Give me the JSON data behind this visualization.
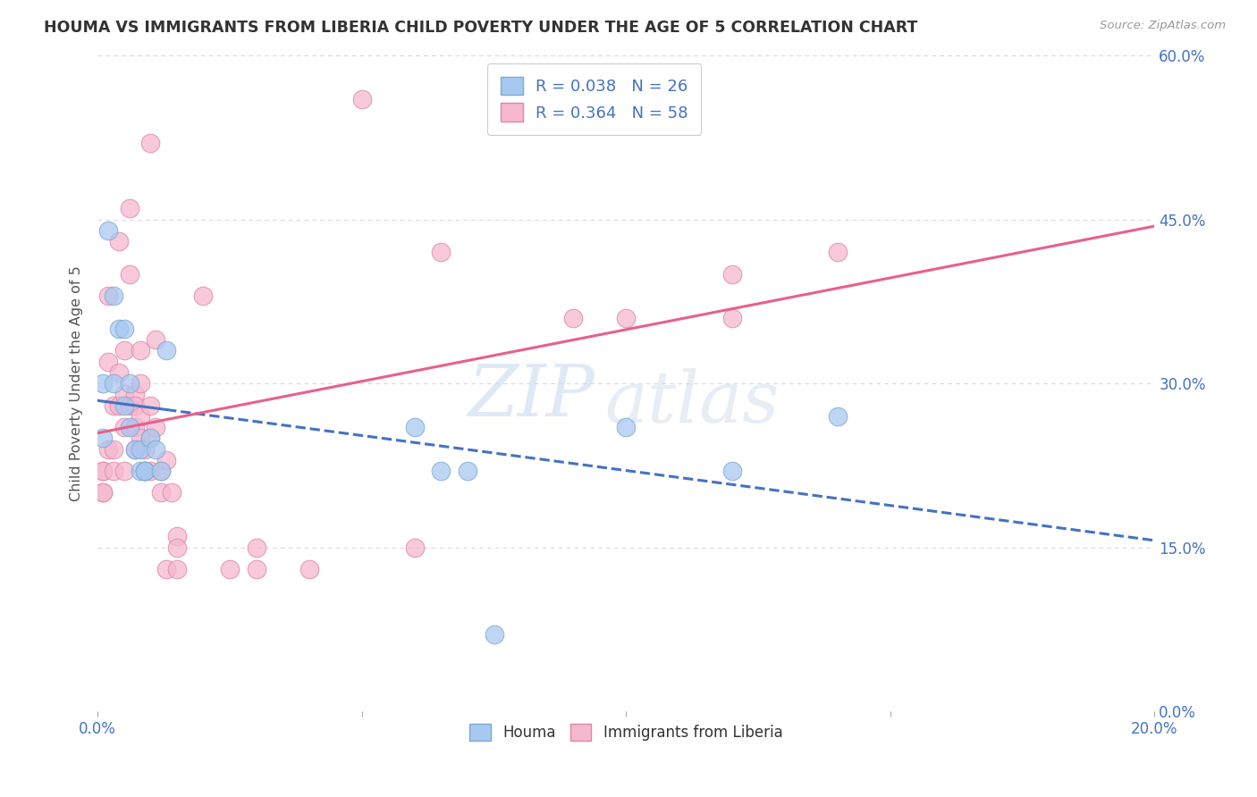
{
  "title": "HOUMA VS IMMIGRANTS FROM LIBERIA CHILD POVERTY UNDER THE AGE OF 5 CORRELATION CHART",
  "source": "Source: ZipAtlas.com",
  "ylabel": "Child Poverty Under the Age of 5",
  "xlim": [
    0.0,
    0.2
  ],
  "ylim": [
    0.0,
    0.6
  ],
  "houma_color": "#a8c8f0",
  "houma_edge_color": "#7aaad4",
  "liberia_color": "#f5b8ce",
  "liberia_edge_color": "#e085a8",
  "houma_R": 0.038,
  "houma_N": 26,
  "liberia_R": 0.364,
  "liberia_N": 58,
  "legend_label_houma": "Houma",
  "legend_label_liberia": "Immigrants from Liberia",
  "houma_x": [
    0.001,
    0.001,
    0.002,
    0.003,
    0.003,
    0.004,
    0.005,
    0.005,
    0.006,
    0.006,
    0.007,
    0.008,
    0.008,
    0.009,
    0.009,
    0.01,
    0.011,
    0.012,
    0.013,
    0.06,
    0.065,
    0.07,
    0.075,
    0.1,
    0.12,
    0.14
  ],
  "houma_y": [
    0.3,
    0.25,
    0.44,
    0.38,
    0.3,
    0.35,
    0.35,
    0.28,
    0.3,
    0.26,
    0.24,
    0.24,
    0.22,
    0.22,
    0.22,
    0.25,
    0.24,
    0.22,
    0.33,
    0.26,
    0.22,
    0.22,
    0.07,
    0.26,
    0.22,
    0.27
  ],
  "liberia_x": [
    0.001,
    0.001,
    0.001,
    0.001,
    0.002,
    0.002,
    0.002,
    0.003,
    0.003,
    0.003,
    0.004,
    0.004,
    0.004,
    0.005,
    0.005,
    0.005,
    0.005,
    0.006,
    0.006,
    0.006,
    0.007,
    0.007,
    0.007,
    0.007,
    0.008,
    0.008,
    0.008,
    0.008,
    0.009,
    0.009,
    0.009,
    0.01,
    0.01,
    0.01,
    0.01,
    0.011,
    0.011,
    0.012,
    0.012,
    0.013,
    0.013,
    0.014,
    0.015,
    0.015,
    0.015,
    0.02,
    0.025,
    0.03,
    0.03,
    0.04,
    0.05,
    0.06,
    0.065,
    0.09,
    0.1,
    0.12,
    0.12,
    0.14
  ],
  "liberia_y": [
    0.22,
    0.2,
    0.22,
    0.2,
    0.38,
    0.32,
    0.24,
    0.28,
    0.24,
    0.22,
    0.43,
    0.31,
    0.28,
    0.33,
    0.29,
    0.26,
    0.22,
    0.46,
    0.4,
    0.28,
    0.29,
    0.28,
    0.26,
    0.24,
    0.33,
    0.3,
    0.27,
    0.25,
    0.24,
    0.22,
    0.22,
    0.52,
    0.28,
    0.25,
    0.22,
    0.34,
    0.26,
    0.22,
    0.2,
    0.23,
    0.13,
    0.2,
    0.16,
    0.15,
    0.13,
    0.38,
    0.13,
    0.15,
    0.13,
    0.13,
    0.56,
    0.15,
    0.42,
    0.36,
    0.36,
    0.4,
    0.36,
    0.42
  ],
  "houma_line_color": "#4472C4",
  "houma_line_solid_end": 0.013,
  "liberia_line_color": "#E8608A",
  "watermark_zip": "ZIP",
  "watermark_atlas": "atlas",
  "background_color": "#ffffff",
  "grid_color": "#d8d8d8",
  "title_color": "#333333",
  "axis_color": "#4472C4",
  "ylabel_color": "#555555"
}
